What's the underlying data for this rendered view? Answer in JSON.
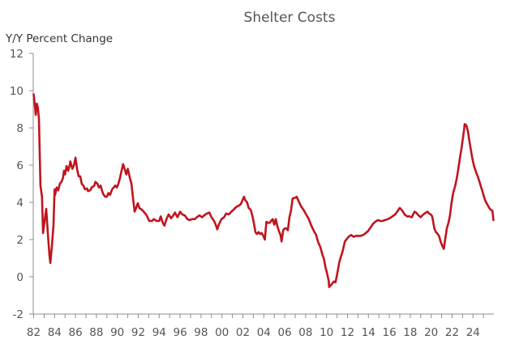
{
  "chart_data": {
    "type": "line",
    "title": "Shelter Costs",
    "ylabel": "Y/Y Percent Change",
    "xlabel": "",
    "ylim": [
      -2,
      12
    ],
    "yticks": [
      -2,
      0,
      2,
      4,
      6,
      8,
      10,
      12
    ],
    "ytick_labels": [
      "-2",
      "0",
      "2",
      "4",
      "6",
      "8",
      "10",
      "12"
    ],
    "xlim": [
      1982,
      2026
    ],
    "xticks_major": [
      1982,
      1984,
      1986,
      1988,
      1990,
      1992,
      1994,
      1996,
      1998,
      2000,
      2002,
      2004,
      2006,
      2008,
      2010,
      2012,
      2014,
      2016,
      2018,
      2020,
      2022,
      2024
    ],
    "xtick_labels": [
      "82",
      "84",
      "86",
      "88",
      "90",
      "92",
      "94",
      "96",
      "98",
      "00",
      "02",
      "04",
      "06",
      "08",
      "10",
      "12",
      "14",
      "16",
      "18",
      "20",
      "22",
      "24"
    ],
    "xticks_minor_every_year": true,
    "grid": false,
    "legend": "none",
    "series": [
      {
        "name": "Shelter Costs",
        "color": "#C0141E",
        "x": [
          1982.0,
          1982.1,
          1982.2,
          1982.3,
          1982.4,
          1982.5,
          1982.65,
          1982.8,
          1982.9,
          1983.05,
          1983.2,
          1983.35,
          1983.5,
          1983.6,
          1983.75,
          1983.9,
          1984.0,
          1984.05,
          1984.2,
          1984.35,
          1984.5,
          1984.65,
          1984.8,
          1984.9,
          1985.0,
          1985.15,
          1985.3,
          1985.45,
          1985.5,
          1985.7,
          1985.85,
          1986.0,
          1986.15,
          1986.3,
          1986.45,
          1986.6,
          1986.75,
          1986.9,
          1987.1,
          1987.2,
          1987.4,
          1987.55,
          1987.8,
          1987.9,
          1988.1,
          1988.25,
          1988.4,
          1988.55,
          1988.7,
          1988.85,
          1989.0,
          1989.15,
          1989.3,
          1989.5,
          1989.65,
          1989.8,
          1989.95,
          1990.1,
          1990.25,
          1990.4,
          1990.55,
          1990.7,
          1990.85,
          1991.0,
          1991.2,
          1991.35,
          1991.5,
          1991.65,
          1991.8,
          1991.95,
          1992.1,
          1992.35,
          1992.6,
          1992.8,
          1993.05,
          1993.3,
          1993.5,
          1993.75,
          1994.0,
          1994.15,
          1994.35,
          1994.5,
          1994.7,
          1994.9,
          1995.15,
          1995.35,
          1995.5,
          1995.75,
          1996.0,
          1996.2,
          1996.45,
          1996.7,
          1996.9,
          1997.15,
          1997.4,
          1997.6,
          1997.85,
          1998.1,
          1998.3,
          1998.55,
          1998.8,
          1999.0,
          1999.25,
          1999.4,
          1999.55,
          1999.7,
          1999.95,
          2000.2,
          2000.4,
          2000.65,
          2000.9,
          2001.1,
          2001.35,
          2001.55,
          2001.8,
          2001.95,
          2002.1,
          2002.25,
          2002.4,
          2002.55,
          2002.75,
          2002.9,
          2003.05,
          2003.2,
          2003.35,
          2003.5,
          2003.65,
          2003.8,
          2003.95,
          2004.1,
          2004.25,
          2004.4,
          2004.55,
          2004.7,
          2004.85,
          2005.0,
          2005.15,
          2005.3,
          2005.45,
          2005.6,
          2005.7,
          2005.85,
          2006.0,
          2006.15,
          2006.3,
          2006.45,
          2006.6,
          2006.75,
          2007.0,
          2007.15,
          2007.3,
          2007.55,
          2007.8,
          2008.05,
          2008.3,
          2008.5,
          2008.75,
          2009.0,
          2009.2,
          2009.4,
          2009.6,
          2009.75,
          2009.9,
          2010.0,
          2010.2,
          2010.25,
          2010.4,
          2010.55,
          2010.7,
          2010.85,
          2011.0,
          2011.2,
          2011.35,
          2011.5,
          2011.75,
          2011.95,
          2012.1,
          2012.35,
          2012.6,
          2012.8,
          2013.05,
          2013.25,
          2013.5,
          2013.75,
          2013.95,
          2014.2,
          2014.45,
          2014.65,
          2014.9,
          2015.15,
          2015.35,
          2015.6,
          2015.85,
          2016.05,
          2016.3,
          2016.55,
          2016.75,
          2017.0,
          2017.25,
          2017.45,
          2017.7,
          2017.9,
          2018.15,
          2018.4,
          2018.55,
          2018.8,
          2019.0,
          2019.25,
          2019.5,
          2019.65,
          2019.8,
          2019.95,
          2020.1,
          2020.3,
          2020.45,
          2020.55,
          2020.75,
          2020.9,
          2021.0,
          2021.2,
          2021.35,
          2021.5,
          2021.65,
          2021.8,
          2021.95,
          2022.1,
          2022.3,
          2022.45,
          2022.6,
          2022.75,
          2022.9,
          2023.05,
          2023.15,
          2023.2,
          2023.35,
          2023.5,
          2023.65,
          2023.8,
          2023.95,
          2024.1,
          2024.3,
          2024.45,
          2024.6,
          2024.75,
          2024.9,
          2025.05,
          2025.2,
          2025.4,
          2025.55,
          2025.7,
          2025.85,
          2025.95
        ],
        "y": [
          9.8,
          9.3,
          8.7,
          9.3,
          9.1,
          8.5,
          4.9,
          4.3,
          2.35,
          3.0,
          3.65,
          2.4,
          1.2,
          0.75,
          1.7,
          2.8,
          4.7,
          4.4,
          4.8,
          4.65,
          5.0,
          5.1,
          5.3,
          5.7,
          5.5,
          5.95,
          5.7,
          6.0,
          6.2,
          5.8,
          6.0,
          6.4,
          5.8,
          5.4,
          5.4,
          5.0,
          4.9,
          4.7,
          4.75,
          4.6,
          4.65,
          4.8,
          4.9,
          5.1,
          5.0,
          4.8,
          4.9,
          4.6,
          4.4,
          4.3,
          4.3,
          4.5,
          4.4,
          4.7,
          4.8,
          4.9,
          4.8,
          5.0,
          5.3,
          5.7,
          6.05,
          5.8,
          5.5,
          5.8,
          5.3,
          5.0,
          4.2,
          3.5,
          3.7,
          3.95,
          3.7,
          3.6,
          3.45,
          3.3,
          3.0,
          3.0,
          3.1,
          3.0,
          3.0,
          3.25,
          2.9,
          2.75,
          3.1,
          3.35,
          3.15,
          3.3,
          3.45,
          3.2,
          3.5,
          3.35,
          3.3,
          3.1,
          3.05,
          3.1,
          3.1,
          3.2,
          3.3,
          3.2,
          3.3,
          3.4,
          3.45,
          3.2,
          3.0,
          2.8,
          2.55,
          2.8,
          3.1,
          3.2,
          3.4,
          3.35,
          3.5,
          3.6,
          3.75,
          3.8,
          3.9,
          4.1,
          4.3,
          4.1,
          4.0,
          3.7,
          3.6,
          3.3,
          2.9,
          2.4,
          2.3,
          2.4,
          2.3,
          2.35,
          2.2,
          2.0,
          2.95,
          2.9,
          2.9,
          3.0,
          3.1,
          2.8,
          3.1,
          2.7,
          2.45,
          2.25,
          1.9,
          2.5,
          2.6,
          2.6,
          2.5,
          3.2,
          3.55,
          4.2,
          4.25,
          4.3,
          4.1,
          3.8,
          3.6,
          3.35,
          3.1,
          2.8,
          2.5,
          2.25,
          1.85,
          1.6,
          1.2,
          0.95,
          0.5,
          0.3,
          -0.2,
          -0.55,
          -0.45,
          -0.35,
          -0.25,
          -0.3,
          0.1,
          0.75,
          1.05,
          1.3,
          1.9,
          2.05,
          2.15,
          2.25,
          2.15,
          2.2,
          2.2,
          2.2,
          2.25,
          2.35,
          2.45,
          2.65,
          2.85,
          2.95,
          3.05,
          3.0,
          3.0,
          3.05,
          3.1,
          3.15,
          3.25,
          3.35,
          3.5,
          3.7,
          3.55,
          3.35,
          3.25,
          3.25,
          3.2,
          3.5,
          3.45,
          3.3,
          3.2,
          3.35,
          3.45,
          3.5,
          3.4,
          3.35,
          3.25,
          2.6,
          2.4,
          2.35,
          2.2,
          1.9,
          1.75,
          1.5,
          2.05,
          2.6,
          2.9,
          3.3,
          4.0,
          4.5,
          4.9,
          5.3,
          5.8,
          6.4,
          6.9,
          7.5,
          7.9,
          8.2,
          8.15,
          7.85,
          7.3,
          6.8,
          6.3,
          5.95,
          5.6,
          5.4,
          5.15,
          4.85,
          4.6,
          4.3,
          4.05,
          3.85,
          3.7,
          3.6,
          3.55,
          3.05
        ]
      }
    ]
  }
}
